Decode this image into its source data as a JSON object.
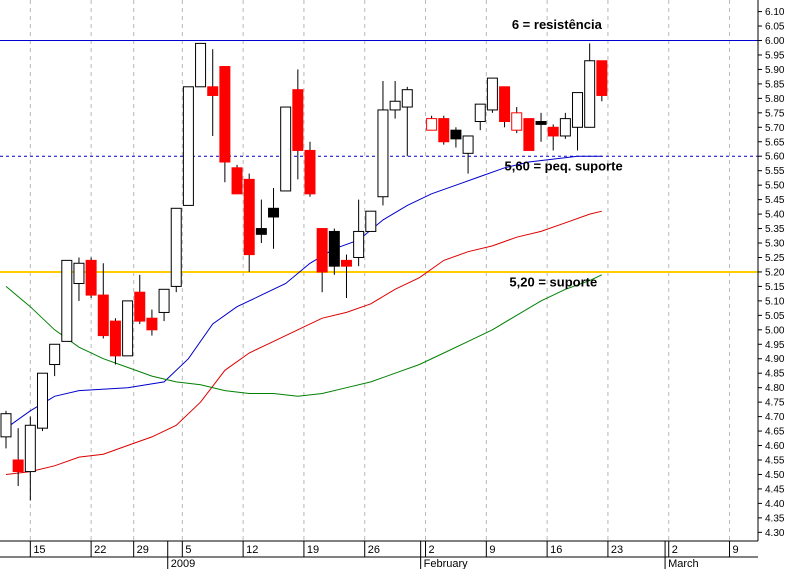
{
  "chart_data": {
    "type": "candlestick",
    "ylim": [
      4.27,
      6.14
    ],
    "y_ticks": [
      "6.10",
      "6.05",
      "6.00",
      "5.95",
      "5.90",
      "5.85",
      "5.80",
      "5.75",
      "5.70",
      "5.65",
      "5.60",
      "5.55",
      "5.50",
      "5.45",
      "5.40",
      "5.35",
      "5.30",
      "5.25",
      "5.20",
      "5.15",
      "5.10",
      "5.05",
      "5.00",
      "4.95",
      "4.90",
      "4.85",
      "4.80",
      "4.75",
      "4.70",
      "4.65",
      "4.60",
      "4.55",
      "4.50",
      "4.45",
      "4.40",
      "4.35",
      "4.30"
    ],
    "x_ticks": [
      {
        "label": "15",
        "idx": 2
      },
      {
        "label": "22",
        "idx": 7
      },
      {
        "label": "29",
        "idx": 10.5
      },
      {
        "label": "5",
        "idx": 14.5
      },
      {
        "label": "12",
        "idx": 19.5
      },
      {
        "label": "19",
        "idx": 24.5
      },
      {
        "label": "26",
        "idx": 29.5
      },
      {
        "label": "2",
        "idx": 34.5
      },
      {
        "label": "9",
        "idx": 39.5
      },
      {
        "label": "16",
        "idx": 44.5
      },
      {
        "label": "23",
        "idx": 49.5
      },
      {
        "label": "2",
        "idx": 54.5
      },
      {
        "label": "9",
        "idx": 59.5
      }
    ],
    "period_labels": [
      {
        "label": "2009",
        "idx": 13.3
      },
      {
        "label": "February",
        "idx": 34.1
      },
      {
        "label": "March",
        "idx": 54.2
      }
    ],
    "candles": [
      {
        "idx": 0,
        "o": 4.63,
        "h": 4.72,
        "l": 4.59,
        "c": 4.71,
        "color": "white"
      },
      {
        "idx": 1,
        "o": 4.55,
        "h": 4.66,
        "l": 4.46,
        "c": 4.51,
        "color": "red"
      },
      {
        "idx": 2,
        "o": 4.51,
        "h": 4.7,
        "l": 4.41,
        "c": 4.67,
        "color": "white"
      },
      {
        "idx": 3,
        "o": 4.66,
        "h": 4.85,
        "l": 4.65,
        "c": 4.85,
        "color": "white"
      },
      {
        "idx": 4,
        "o": 4.88,
        "h": 4.95,
        "l": 4.84,
        "c": 4.95,
        "color": "white"
      },
      {
        "idx": 5,
        "o": 4.96,
        "h": 5.24,
        "l": 4.96,
        "c": 5.24,
        "color": "white"
      },
      {
        "idx": 6,
        "o": 5.16,
        "h": 5.25,
        "l": 5.1,
        "c": 5.23,
        "color": "white"
      },
      {
        "idx": 7,
        "o": 5.24,
        "h": 5.25,
        "l": 5.11,
        "c": 5.12,
        "color": "red"
      },
      {
        "idx": 8,
        "o": 5.12,
        "h": 5.23,
        "l": 4.97,
        "c": 4.98,
        "color": "red"
      },
      {
        "idx": 9,
        "o": 5.03,
        "h": 5.04,
        "l": 4.88,
        "c": 4.91,
        "color": "red"
      },
      {
        "idx": 10,
        "o": 4.91,
        "h": 5.1,
        "l": 4.91,
        "c": 5.1,
        "color": "white"
      },
      {
        "idx": 11,
        "o": 5.13,
        "h": 5.19,
        "l": 5.02,
        "c": 5.03,
        "color": "red"
      },
      {
        "idx": 12,
        "o": 5.04,
        "h": 5.07,
        "l": 4.98,
        "c": 5.0,
        "color": "red"
      },
      {
        "idx": 13,
        "o": 5.06,
        "h": 5.14,
        "l": 5.03,
        "c": 5.14,
        "color": "white"
      },
      {
        "idx": 14,
        "o": 5.15,
        "h": 5.42,
        "l": 5.13,
        "c": 5.42,
        "color": "white"
      },
      {
        "idx": 15,
        "o": 5.43,
        "h": 5.84,
        "l": 5.43,
        "c": 5.84,
        "color": "white"
      },
      {
        "idx": 16,
        "o": 5.84,
        "h": 5.99,
        "l": 5.84,
        "c": 5.99,
        "color": "white"
      },
      {
        "idx": 17,
        "o": 5.84,
        "h": 5.97,
        "l": 5.67,
        "c": 5.81,
        "color": "red"
      },
      {
        "idx": 18,
        "o": 5.91,
        "h": 5.91,
        "l": 5.51,
        "c": 5.58,
        "color": "red"
      },
      {
        "idx": 19,
        "o": 5.56,
        "h": 5.57,
        "l": 5.47,
        "c": 5.47,
        "color": "red"
      },
      {
        "idx": 20,
        "o": 5.52,
        "h": 5.54,
        "l": 5.2,
        "c": 5.26,
        "color": "red"
      },
      {
        "idx": 21,
        "o": 5.35,
        "h": 5.45,
        "l": 5.3,
        "c": 5.33,
        "color": "black"
      },
      {
        "idx": 22,
        "o": 5.39,
        "h": 5.49,
        "l": 5.28,
        "c": 5.42,
        "color": "black"
      },
      {
        "idx": 23,
        "o": 5.48,
        "h": 5.77,
        "l": 5.48,
        "c": 5.77,
        "color": "white"
      },
      {
        "idx": 24,
        "o": 5.83,
        "h": 5.9,
        "l": 5.52,
        "c": 5.62,
        "color": "red"
      },
      {
        "idx": 25,
        "o": 5.62,
        "h": 5.65,
        "l": 5.46,
        "c": 5.47,
        "color": "red"
      },
      {
        "idx": 26,
        "o": 5.35,
        "h": 5.35,
        "l": 5.13,
        "c": 5.2,
        "color": "red"
      },
      {
        "idx": 27,
        "o": 5.34,
        "h": 5.35,
        "l": 5.19,
        "c": 5.22,
        "color": "black"
      },
      {
        "idx": 28,
        "o": 5.24,
        "h": 5.26,
        "l": 5.11,
        "c": 5.22,
        "color": "red"
      },
      {
        "idx": 29,
        "o": 5.25,
        "h": 5.45,
        "l": 5.22,
        "c": 5.34,
        "color": "white"
      },
      {
        "idx": 30,
        "o": 5.34,
        "h": 5.41,
        "l": 5.34,
        "c": 5.41,
        "color": "white"
      },
      {
        "idx": 31,
        "o": 5.46,
        "h": 5.86,
        "l": 5.43,
        "c": 5.76,
        "color": "white"
      },
      {
        "idx": 32,
        "o": 5.76,
        "h": 5.86,
        "l": 5.73,
        "c": 5.79,
        "color": "white"
      },
      {
        "idx": 33,
        "o": 5.77,
        "h": 5.84,
        "l": 5.6,
        "c": 5.83,
        "color": "white"
      },
      {
        "idx": 35,
        "o": 5.73,
        "h": 5.74,
        "l": 5.69,
        "c": 5.69,
        "color": "red_hollow"
      },
      {
        "idx": 36,
        "o": 5.73,
        "h": 5.74,
        "l": 5.64,
        "c": 5.65,
        "color": "red"
      },
      {
        "idx": 37,
        "o": 5.69,
        "h": 5.7,
        "l": 5.63,
        "c": 5.66,
        "color": "black"
      },
      {
        "idx": 38,
        "o": 5.61,
        "h": 5.67,
        "l": 5.54,
        "c": 5.67,
        "color": "white"
      },
      {
        "idx": 39,
        "o": 5.72,
        "h": 5.78,
        "l": 5.69,
        "c": 5.78,
        "color": "white"
      },
      {
        "idx": 40,
        "o": 5.76,
        "h": 5.87,
        "l": 5.75,
        "c": 5.87,
        "color": "white"
      },
      {
        "idx": 41,
        "o": 5.84,
        "h": 5.84,
        "l": 5.7,
        "c": 5.72,
        "color": "red"
      },
      {
        "idx": 42,
        "o": 5.75,
        "h": 5.77,
        "l": 5.68,
        "c": 5.69,
        "color": "red_hollow"
      },
      {
        "idx": 43,
        "o": 5.73,
        "h": 5.73,
        "l": 5.62,
        "c": 5.62,
        "color": "red"
      },
      {
        "idx": 44,
        "o": 5.71,
        "h": 5.75,
        "l": 5.65,
        "c": 5.72,
        "color": "black"
      },
      {
        "idx": 45,
        "o": 5.7,
        "h": 5.71,
        "l": 5.62,
        "c": 5.67,
        "color": "red"
      },
      {
        "idx": 46,
        "o": 5.67,
        "h": 5.75,
        "l": 5.66,
        "c": 5.73,
        "color": "white"
      },
      {
        "idx": 47,
        "o": 5.7,
        "h": 5.82,
        "l": 5.62,
        "c": 5.82,
        "color": "white"
      },
      {
        "idx": 48,
        "o": 5.7,
        "h": 5.99,
        "l": 5.7,
        "c": 5.93,
        "color": "white"
      },
      {
        "idx": 49,
        "o": 5.93,
        "h": 5.93,
        "l": 5.79,
        "c": 5.81,
        "color": "red"
      }
    ],
    "moving_averages": [
      {
        "color": "#0000cc",
        "points": [
          [
            0,
            4.66
          ],
          [
            2,
            4.72
          ],
          [
            4,
            4.77
          ],
          [
            6,
            4.79
          ],
          [
            10,
            4.8
          ],
          [
            13,
            4.82
          ],
          [
            15,
            4.9
          ],
          [
            17,
            5.02
          ],
          [
            19,
            5.08
          ],
          [
            21,
            5.12
          ],
          [
            23,
            5.16
          ],
          [
            25,
            5.23
          ],
          [
            27,
            5.28
          ],
          [
            29,
            5.31
          ],
          [
            31,
            5.38
          ],
          [
            33,
            5.43
          ],
          [
            35,
            5.47
          ],
          [
            37,
            5.5
          ],
          [
            39,
            5.53
          ],
          [
            41,
            5.56
          ],
          [
            43,
            5.58
          ],
          [
            45,
            5.59
          ],
          [
            47,
            5.6
          ],
          [
            49,
            5.6
          ]
        ]
      },
      {
        "color": "#dd0000",
        "points": [
          [
            0,
            4.5
          ],
          [
            2,
            4.51
          ],
          [
            4,
            4.53
          ],
          [
            6,
            4.56
          ],
          [
            8,
            4.57
          ],
          [
            10,
            4.6
          ],
          [
            12,
            4.63
          ],
          [
            14,
            4.67
          ],
          [
            16,
            4.75
          ],
          [
            18,
            4.86
          ],
          [
            20,
            4.92
          ],
          [
            22,
            4.96
          ],
          [
            24,
            5.0
          ],
          [
            26,
            5.04
          ],
          [
            28,
            5.06
          ],
          [
            30,
            5.09
          ],
          [
            32,
            5.14
          ],
          [
            34,
            5.18
          ],
          [
            36,
            5.24
          ],
          [
            38,
            5.27
          ],
          [
            40,
            5.29
          ],
          [
            42,
            5.32
          ],
          [
            44,
            5.34
          ],
          [
            46,
            5.37
          ],
          [
            48,
            5.4
          ],
          [
            49,
            5.41
          ]
        ]
      },
      {
        "color": "#008000",
        "points": [
          [
            0,
            5.15
          ],
          [
            2,
            5.08
          ],
          [
            4,
            5.0
          ],
          [
            6,
            4.94
          ],
          [
            8,
            4.9
          ],
          [
            10,
            4.87
          ],
          [
            12,
            4.84
          ],
          [
            14,
            4.82
          ],
          [
            16,
            4.81
          ],
          [
            18,
            4.79
          ],
          [
            20,
            4.78
          ],
          [
            22,
            4.78
          ],
          [
            24,
            4.77
          ],
          [
            26,
            4.78
          ],
          [
            28,
            4.8
          ],
          [
            30,
            4.82
          ],
          [
            32,
            4.85
          ],
          [
            34,
            4.88
          ],
          [
            36,
            4.92
          ],
          [
            38,
            4.96
          ],
          [
            40,
            5.0
          ],
          [
            42,
            5.05
          ],
          [
            44,
            5.1
          ],
          [
            46,
            5.14
          ],
          [
            48,
            5.17
          ],
          [
            49,
            5.19
          ]
        ]
      }
    ],
    "levels": [
      {
        "value": 6.0,
        "color": "#0000cc",
        "style": "solid"
      },
      {
        "value": 5.6,
        "color": "#0000cc",
        "style": "dashed"
      },
      {
        "value": 5.2,
        "color": "#ffcc00",
        "style": "solid"
      }
    ],
    "annotations": [
      {
        "text": "6 = resistência",
        "idx": 41.6,
        "y": 6.04
      },
      {
        "text": "5,60 = peq. suporte",
        "idx": 41.0,
        "y": 5.55
      },
      {
        "text": "5,20 = suporte",
        "idx": 41.4,
        "y": 5.15
      }
    ]
  }
}
